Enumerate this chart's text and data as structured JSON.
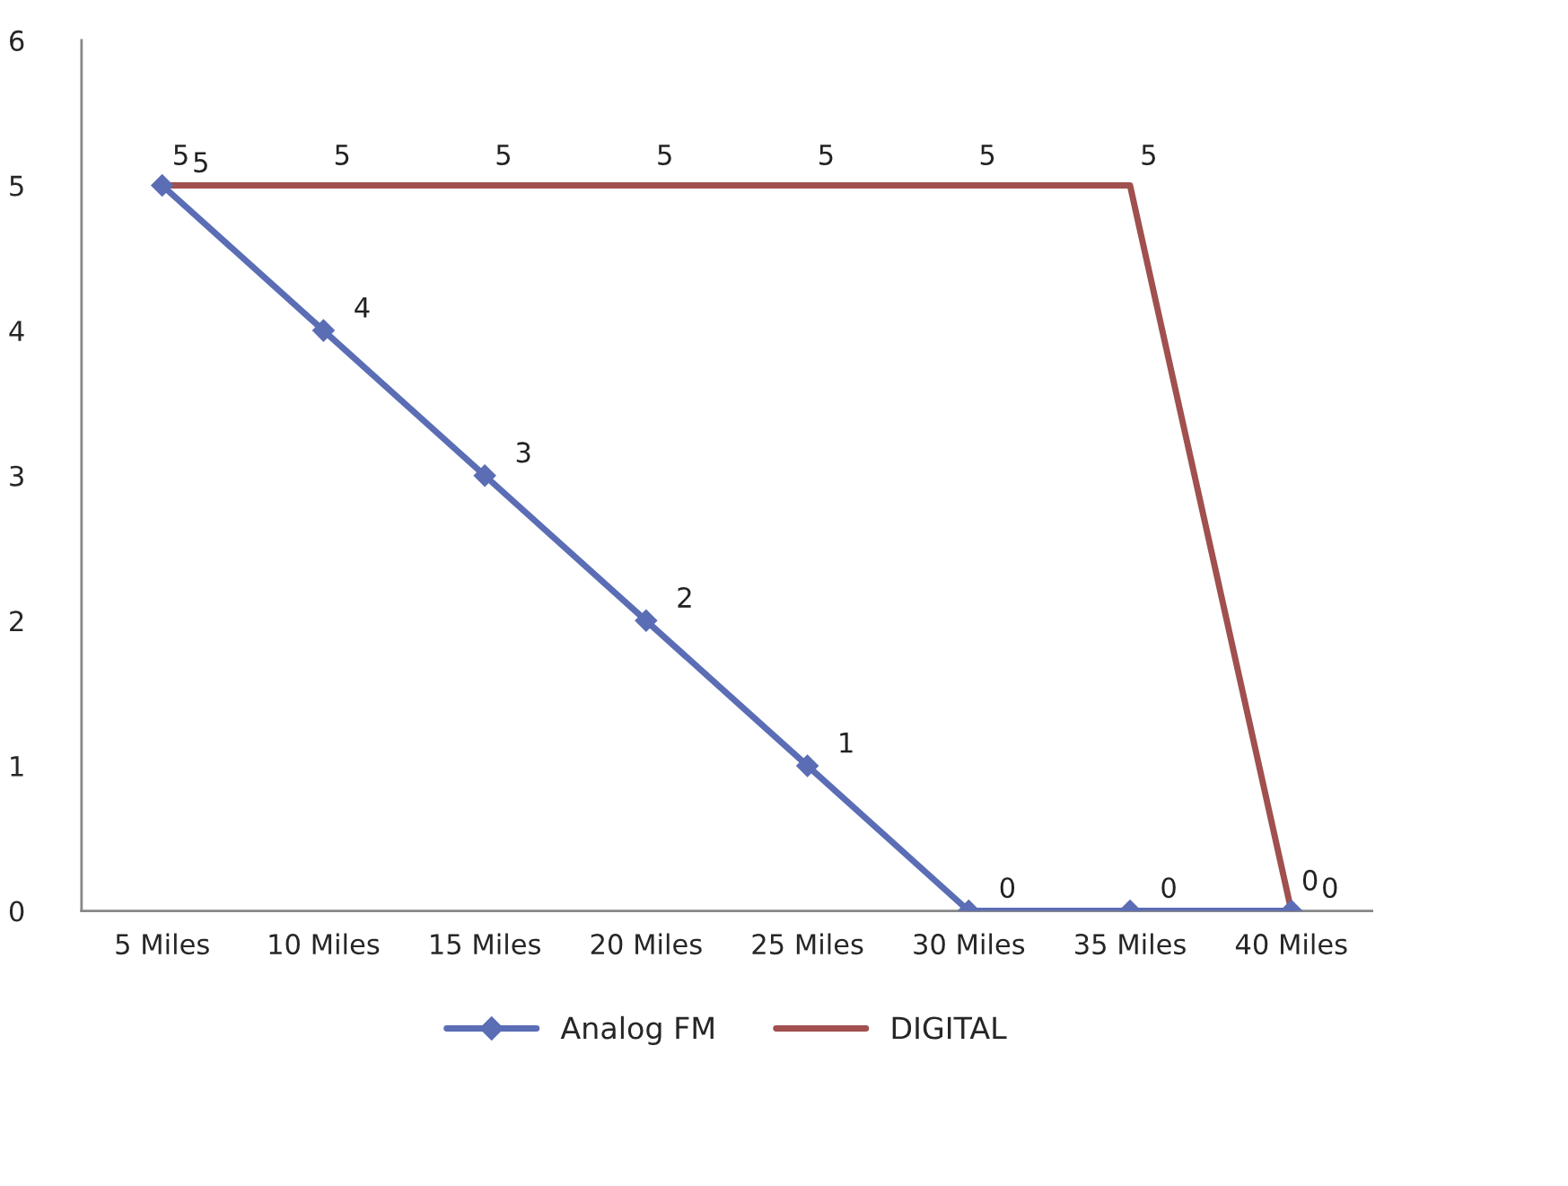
{
  "chart_data": {
    "type": "line",
    "categories": [
      "5 Miles",
      "10 Miles",
      "15 Miles",
      "20 Miles",
      "25 Miles",
      "30 Miles",
      "35 Miles",
      "40 Miles"
    ],
    "series": [
      {
        "name": "Analog FM",
        "color": "#5b6db5",
        "marker": "diamond",
        "values": [
          5,
          4,
          3,
          2,
          1,
          0,
          0,
          0
        ]
      },
      {
        "name": "DIGITAL",
        "color": "#a0504e",
        "marker": "none",
        "values": [
          5,
          5,
          5,
          5,
          5,
          5,
          5,
          0
        ]
      }
    ],
    "ylim": [
      0,
      6
    ],
    "yticks": [
      0,
      1,
      2,
      3,
      4,
      5,
      6
    ],
    "grid": false,
    "legend": "bottom",
    "data_labels": true
  }
}
